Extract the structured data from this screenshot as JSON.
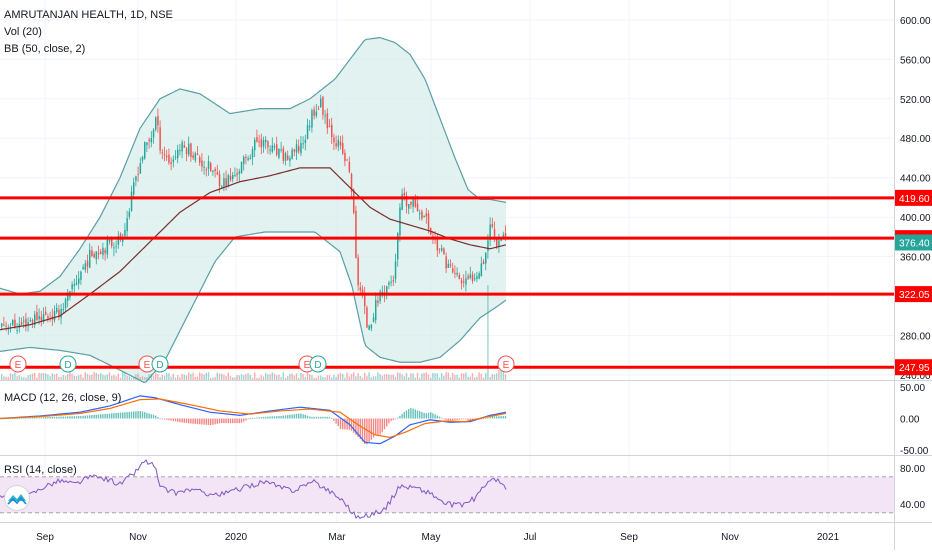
{
  "header": {
    "symbol_title": "AMRUTANJAN HEALTH, 1D, NSE",
    "volume_indicator": "Vol (20)",
    "bb_indicator": "BB (50, close, 2)"
  },
  "macd_panel": {
    "title": "MACD (12, 26, close, 9)",
    "ticks": [
      "50.00",
      "0.00",
      "-50.00"
    ]
  },
  "rsi_panel": {
    "title": "RSI (14, close)",
    "ticks": [
      "80.00",
      "40.00"
    ]
  },
  "colors": {
    "up": "#26a69a",
    "down": "#ef5350",
    "hline": "#ff0000",
    "band": "#5a9ea5",
    "basis": "#7d2c2c",
    "macd": "#2962ff",
    "signal": "#ff6d00",
    "rsi": "#7e57c2",
    "rsi_bg": "#f3e5f5",
    "event_e": "#ef5350",
    "event_d": "#26a69a"
  },
  "chart_data": {
    "type": "candlestick",
    "price_axis": [
      "600.00",
      "560.00",
      "520.00",
      "480.00",
      "440.00",
      "400.00",
      "360.00",
      "320.00",
      "280.00",
      "240.00"
    ],
    "price_range": [
      235,
      612
    ],
    "horizontal_lines": [
      {
        "value": 419.6,
        "label": "419.60"
      },
      {
        "value": 378.75,
        "label": "378.75"
      },
      {
        "value": 322.05,
        "label": "322.05"
      },
      {
        "value": 247.95,
        "label": "247.95"
      }
    ],
    "last_price": {
      "value": 376.4,
      "label": "376.40"
    },
    "time_axis": [
      "Sep",
      "Nov",
      "2020",
      "Mar",
      "May",
      "Jul",
      "Sep",
      "Nov",
      "2021"
    ],
    "events": [
      {
        "type": "E",
        "label": "E"
      },
      {
        "type": "D",
        "label": "D"
      },
      {
        "type": "E",
        "label": "E"
      },
      {
        "type": "D",
        "label": "D"
      },
      {
        "type": "E",
        "label": "E"
      },
      {
        "type": "D",
        "label": "D"
      },
      {
        "type": "E",
        "label": "E"
      }
    ],
    "close_anchors": [
      [
        0,
        292
      ],
      [
        18,
        290
      ],
      [
        38,
        300
      ],
      [
        55,
        300
      ],
      [
        68,
        318
      ],
      [
        80,
        345
      ],
      [
        92,
        365
      ],
      [
        108,
        372
      ],
      [
        120,
        378
      ],
      [
        128,
        405
      ],
      [
        136,
        445
      ],
      [
        144,
        470
      ],
      [
        150,
        480
      ],
      [
        155,
        500
      ],
      [
        160,
        470
      ],
      [
        170,
        455
      ],
      [
        178,
        470
      ],
      [
        188,
        470
      ],
      [
        198,
        458
      ],
      [
        210,
        448
      ],
      [
        222,
        435
      ],
      [
        232,
        440
      ],
      [
        245,
        458
      ],
      [
        258,
        480
      ],
      [
        268,
        470
      ],
      [
        280,
        462
      ],
      [
        290,
        460
      ],
      [
        298,
        470
      ],
      [
        305,
        482
      ],
      [
        312,
        508
      ],
      [
        320,
        515
      ],
      [
        330,
        488
      ],
      [
        340,
        468
      ],
      [
        348,
        450
      ],
      [
        352,
        420
      ],
      [
        356,
        340
      ],
      [
        362,
        318
      ],
      [
        366,
        290
      ],
      [
        372,
        300
      ],
      [
        378,
        320
      ],
      [
        386,
        330
      ],
      [
        394,
        340
      ],
      [
        400,
        418
      ],
      [
        408,
        412
      ],
      [
        416,
        412
      ],
      [
        424,
        400
      ],
      [
        432,
        380
      ],
      [
        440,
        365
      ],
      [
        448,
        350
      ],
      [
        456,
        340
      ],
      [
        464,
        332
      ],
      [
        470,
        338
      ],
      [
        478,
        348
      ],
      [
        484,
        360
      ],
      [
        490,
        395
      ],
      [
        496,
        375
      ],
      [
        503,
        385
      ],
      [
        506,
        376.4
      ]
    ],
    "bollinger_upper_anchors": [
      [
        0,
        328
      ],
      [
        20,
        322
      ],
      [
        40,
        325
      ],
      [
        60,
        340
      ],
      [
        80,
        368
      ],
      [
        100,
        400
      ],
      [
        120,
        440
      ],
      [
        140,
        490
      ],
      [
        160,
        520
      ],
      [
        180,
        530
      ],
      [
        200,
        525
      ],
      [
        230,
        505
      ],
      [
        260,
        510
      ],
      [
        290,
        510
      ],
      [
        310,
        520
      ],
      [
        335,
        540
      ],
      [
        350,
        560
      ],
      [
        365,
        580
      ],
      [
        380,
        582
      ],
      [
        395,
        577
      ],
      [
        410,
        565
      ],
      [
        425,
        540
      ],
      [
        440,
        500
      ],
      [
        455,
        460
      ],
      [
        468,
        428
      ],
      [
        480,
        418
      ],
      [
        490,
        418
      ],
      [
        506,
        415
      ]
    ],
    "bollinger_basis_anchors": [
      [
        0,
        286
      ],
      [
        30,
        291
      ],
      [
        60,
        300
      ],
      [
        90,
        322
      ],
      [
        120,
        345
      ],
      [
        150,
        375
      ],
      [
        180,
        405
      ],
      [
        210,
        425
      ],
      [
        240,
        436
      ],
      [
        270,
        442
      ],
      [
        300,
        450
      ],
      [
        330,
        450
      ],
      [
        350,
        430
      ],
      [
        370,
        410
      ],
      [
        390,
        398
      ],
      [
        410,
        392
      ],
      [
        430,
        386
      ],
      [
        450,
        378
      ],
      [
        470,
        372
      ],
      [
        490,
        368
      ],
      [
        506,
        372
      ]
    ],
    "bollinger_lower_anchors": [
      [
        0,
        264
      ],
      [
        30,
        268
      ],
      [
        60,
        265
      ],
      [
        90,
        260
      ],
      [
        120,
        245
      ],
      [
        145,
        232
      ],
      [
        165,
        255
      ],
      [
        190,
        305
      ],
      [
        215,
        355
      ],
      [
        235,
        380
      ],
      [
        265,
        385
      ],
      [
        290,
        385
      ],
      [
        315,
        385
      ],
      [
        340,
        365
      ],
      [
        352,
        330
      ],
      [
        365,
        270
      ],
      [
        380,
        258
      ],
      [
        400,
        253
      ],
      [
        420,
        253
      ],
      [
        440,
        258
      ],
      [
        460,
        275
      ],
      [
        480,
        298
      ],
      [
        495,
        308
      ],
      [
        506,
        316
      ]
    ],
    "macd_range": [
      -58,
      58
    ],
    "macd_anchors": [
      [
        0,
        0
      ],
      [
        40,
        4
      ],
      [
        80,
        10
      ],
      [
        110,
        20
      ],
      [
        140,
        36
      ],
      [
        155,
        33
      ],
      [
        180,
        22
      ],
      [
        210,
        10
      ],
      [
        240,
        5
      ],
      [
        270,
        12
      ],
      [
        300,
        18
      ],
      [
        330,
        13
      ],
      [
        350,
        -10
      ],
      [
        365,
        -38
      ],
      [
        380,
        -40
      ],
      [
        395,
        -28
      ],
      [
        410,
        -10
      ],
      [
        430,
        -2
      ],
      [
        450,
        -6
      ],
      [
        470,
        -5
      ],
      [
        490,
        5
      ],
      [
        506,
        10
      ]
    ],
    "signal_anchors": [
      [
        0,
        0
      ],
      [
        40,
        3
      ],
      [
        80,
        8
      ],
      [
        110,
        16
      ],
      [
        140,
        30
      ],
      [
        160,
        31
      ],
      [
        190,
        22
      ],
      [
        220,
        12
      ],
      [
        250,
        7
      ],
      [
        280,
        12
      ],
      [
        310,
        15
      ],
      [
        340,
        10
      ],
      [
        360,
        -12
      ],
      [
        375,
        -26
      ],
      [
        390,
        -30
      ],
      [
        405,
        -22
      ],
      [
        425,
        -8
      ],
      [
        445,
        -4
      ],
      [
        465,
        -5
      ],
      [
        485,
        2
      ],
      [
        506,
        8
      ]
    ],
    "rsi_range": [
      22,
      92
    ],
    "rsi_bands": [
      70,
      30
    ],
    "rsi_anchors": [
      [
        0,
        48
      ],
      [
        15,
        42
      ],
      [
        30,
        50
      ],
      [
        45,
        60
      ],
      [
        60,
        66
      ],
      [
        75,
        62
      ],
      [
        90,
        70
      ],
      [
        105,
        68
      ],
      [
        120,
        62
      ],
      [
        135,
        75
      ],
      [
        145,
        88
      ],
      [
        155,
        82
      ],
      [
        160,
        58
      ],
      [
        175,
        52
      ],
      [
        190,
        56
      ],
      [
        205,
        52
      ],
      [
        220,
        50
      ],
      [
        235,
        55
      ],
      [
        250,
        60
      ],
      [
        265,
        65
      ],
      [
        280,
        58
      ],
      [
        295,
        55
      ],
      [
        305,
        62
      ],
      [
        315,
        64
      ],
      [
        330,
        54
      ],
      [
        345,
        42
      ],
      [
        352,
        30
      ],
      [
        360,
        24
      ],
      [
        370,
        28
      ],
      [
        385,
        34
      ],
      [
        400,
        60
      ],
      [
        415,
        58
      ],
      [
        430,
        52
      ],
      [
        445,
        40
      ],
      [
        460,
        38
      ],
      [
        475,
        46
      ],
      [
        490,
        68
      ],
      [
        500,
        64
      ],
      [
        506,
        56
      ]
    ]
  }
}
